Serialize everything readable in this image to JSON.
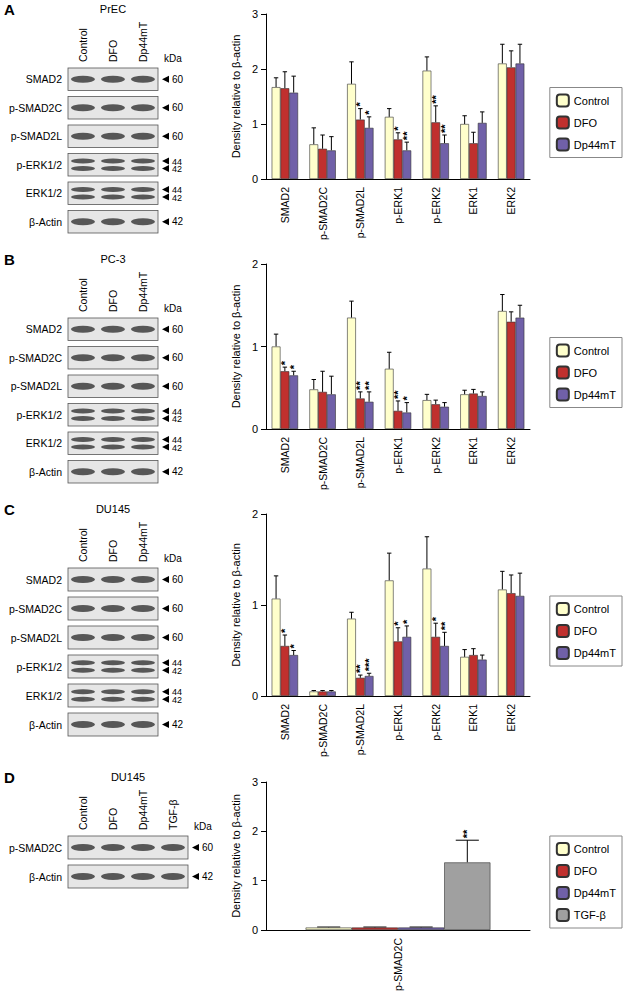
{
  "panels": [
    {
      "letter": "A",
      "blot": {
        "title": "PrEC",
        "lanes": [
          "Control",
          "DFO",
          "Dp44mT"
        ],
        "unit": "kDa",
        "rows": [
          {
            "label": "SMAD2",
            "kda": [
              "60"
            ]
          },
          {
            "label": "p-SMAD2C",
            "kda": [
              "60"
            ]
          },
          {
            "label": "p-SMAD2L",
            "kda": [
              "60"
            ]
          },
          {
            "label": "p-ERK1/2",
            "kda": [
              "44",
              "42"
            ]
          },
          {
            "label": "ERK1/2",
            "kda": [
              "44",
              "42"
            ]
          },
          {
            "label": "β-Actin",
            "kda": [
              "42"
            ]
          }
        ]
      }
    },
    {
      "letter": "B",
      "blot": {
        "title": "PC-3",
        "lanes": [
          "Control",
          "DFO",
          "Dp44mT"
        ],
        "unit": "kDa",
        "rows": [
          {
            "label": "SMAD2",
            "kda": [
              "60"
            ]
          },
          {
            "label": "p-SMAD2C",
            "kda": [
              "60"
            ]
          },
          {
            "label": "p-SMAD2L",
            "kda": [
              "60"
            ]
          },
          {
            "label": "p-ERK1/2",
            "kda": [
              "44",
              "42"
            ]
          },
          {
            "label": "ERK1/2",
            "kda": [
              "44",
              "42"
            ]
          },
          {
            "label": "β-Actin",
            "kda": [
              "42"
            ]
          }
        ]
      }
    },
    {
      "letter": "C",
      "blot": {
        "title": "DU145",
        "lanes": [
          "Control",
          "DFO",
          "Dp44mT"
        ],
        "unit": "kDa",
        "rows": [
          {
            "label": "SMAD2",
            "kda": [
              "60"
            ]
          },
          {
            "label": "p-SMAD2C",
            "kda": [
              "60"
            ]
          },
          {
            "label": "p-SMAD2L",
            "kda": [
              "60"
            ]
          },
          {
            "label": "p-ERK1/2",
            "kda": [
              "44",
              "42"
            ]
          },
          {
            "label": "ERK1/2",
            "kda": [
              "44",
              "42"
            ]
          },
          {
            "label": "β-Actin",
            "kda": [
              "42"
            ]
          }
        ]
      }
    },
    {
      "letter": "D",
      "blot": {
        "title": "DU145",
        "lanes": [
          "Control",
          "DFO",
          "Dp44mT",
          "TGF-β"
        ],
        "unit": "kDa",
        "rows": [
          {
            "label": "p-SMAD2C",
            "kda": [
              "60"
            ]
          },
          {
            "label": "β-Actin",
            "kda": [
              "42"
            ]
          }
        ]
      }
    }
  ],
  "chart_data": [
    {
      "type": "bar",
      "ylabel": "Density relative to β-actin",
      "ylim": [
        0,
        3
      ],
      "yticks": [
        0,
        1,
        2,
        3
      ],
      "grid": false,
      "legend": "right",
      "categories": [
        "SMAD2",
        "p-SMAD2C",
        "p-SMAD2L",
        "p-ERK1",
        "p-ERK2",
        "ERK1",
        "ERK2"
      ],
      "series": [
        {
          "name": "Control",
          "color": "#ffffcc",
          "values": [
            1.67,
            0.63,
            1.73,
            1.13,
            1.97,
            1.0,
            2.1
          ],
          "errors": [
            0.17,
            0.3,
            0.4,
            0.15,
            0.25,
            0.15,
            0.35
          ],
          "annotations": [
            null,
            null,
            null,
            null,
            null,
            null,
            null
          ]
        },
        {
          "name": "DFO",
          "color": "#c0302e",
          "values": [
            1.65,
            0.55,
            1.08,
            0.72,
            1.03,
            0.65,
            2.03
          ],
          "errors": [
            0.3,
            0.25,
            0.2,
            0.12,
            0.3,
            0.2,
            0.3
          ],
          "annotations": [
            null,
            null,
            "*",
            "*",
            "**",
            null,
            null
          ]
        },
        {
          "name": "Dp44mT",
          "color": "#7060a8",
          "values": [
            1.57,
            0.52,
            0.93,
            0.52,
            0.65,
            1.02,
            2.1
          ],
          "errors": [
            0.3,
            0.25,
            0.2,
            0.15,
            0.15,
            0.2,
            0.35
          ],
          "annotations": [
            null,
            null,
            "*",
            "**",
            "**",
            null,
            null
          ]
        }
      ]
    },
    {
      "type": "bar",
      "ylabel": "Density relative to β-actin",
      "ylim": [
        0,
        2
      ],
      "yticks": [
        0,
        1,
        2
      ],
      "grid": false,
      "legend": "right",
      "categories": [
        "SMAD2",
        "p-SMAD2C",
        "p-SMAD2L",
        "p-ERK1",
        "p-ERK2",
        "ERK1",
        "ERK2"
      ],
      "series": [
        {
          "name": "Control",
          "color": "#ffffcc",
          "values": [
            1.0,
            0.48,
            1.35,
            0.73,
            0.35,
            0.42,
            1.43
          ],
          "errors": [
            0.15,
            0.12,
            0.2,
            0.2,
            0.07,
            0.05,
            0.2
          ],
          "annotations": [
            null,
            null,
            null,
            null,
            null,
            null,
            null
          ]
        },
        {
          "name": "DFO",
          "color": "#c0302e",
          "values": [
            0.7,
            0.45,
            0.37,
            0.22,
            0.3,
            0.43,
            1.3
          ],
          "errors": [
            0.05,
            0.25,
            0.08,
            0.12,
            0.05,
            0.05,
            0.12
          ],
          "annotations": [
            "*",
            null,
            "**",
            "**",
            null,
            null,
            null
          ]
        },
        {
          "name": "Dp44mT",
          "color": "#7060a8",
          "values": [
            0.65,
            0.42,
            0.33,
            0.2,
            0.27,
            0.4,
            1.35
          ],
          "errors": [
            0.05,
            0.22,
            0.12,
            0.12,
            0.05,
            0.05,
            0.15
          ],
          "annotations": [
            "*",
            null,
            "**",
            "*",
            null,
            null,
            null
          ]
        }
      ]
    },
    {
      "type": "bar",
      "ylabel": "Density relative to β-actin",
      "ylim": [
        0,
        2
      ],
      "yticks": [
        0,
        1,
        2
      ],
      "grid": false,
      "legend": "right",
      "categories": [
        "SMAD2",
        "p-SMAD2C",
        "p-SMAD2L",
        "p-ERK1",
        "p-ERK2",
        "ERK1",
        "ERK2"
      ],
      "series": [
        {
          "name": "Control",
          "color": "#ffffcc",
          "values": [
            1.07,
            0.05,
            0.85,
            1.27,
            1.4,
            0.43,
            1.17
          ],
          "errors": [
            0.25,
            0.01,
            0.07,
            0.3,
            0.35,
            0.08,
            0.2
          ],
          "annotations": [
            null,
            null,
            null,
            null,
            null,
            null,
            null
          ]
        },
        {
          "name": "DFO",
          "color": "#c0302e",
          "values": [
            0.55,
            0.05,
            0.2,
            0.6,
            0.65,
            0.45,
            1.13
          ],
          "errors": [
            0.12,
            0.01,
            0.03,
            0.15,
            0.15,
            0.07,
            0.2
          ],
          "annotations": [
            "*",
            null,
            "**",
            "*",
            "*",
            null,
            null
          ]
        },
        {
          "name": "Dp44mT",
          "color": "#7060a8",
          "values": [
            0.45,
            0.05,
            0.22,
            0.65,
            0.55,
            0.4,
            1.1
          ],
          "errors": [
            0.05,
            0.01,
            0.03,
            0.12,
            0.15,
            0.05,
            0.25
          ],
          "annotations": [
            "*",
            null,
            "***",
            "*",
            "**",
            null,
            null
          ]
        }
      ]
    },
    {
      "type": "bar",
      "ylabel": "Density relative to β-actin",
      "ylim": [
        0,
        3
      ],
      "yticks": [
        0,
        1,
        2,
        3
      ],
      "grid": false,
      "legend": "right",
      "categories": [
        "p-SMAD2C"
      ],
      "series": [
        {
          "name": "Control",
          "color": "#ffffcc",
          "values": [
            0.05
          ],
          "errors": [
            0.01
          ],
          "annotations": [
            null
          ]
        },
        {
          "name": "DFO",
          "color": "#c0302e",
          "values": [
            0.05
          ],
          "errors": [
            0.01
          ],
          "annotations": [
            null
          ]
        },
        {
          "name": "Dp44mT",
          "color": "#7060a8",
          "values": [
            0.05
          ],
          "errors": [
            0.01
          ],
          "annotations": [
            null
          ]
        },
        {
          "name": "TGF-β",
          "color": "#a0a0a0",
          "values": [
            1.37
          ],
          "errors": [
            0.45
          ],
          "annotations": [
            "**"
          ]
        }
      ]
    }
  ]
}
